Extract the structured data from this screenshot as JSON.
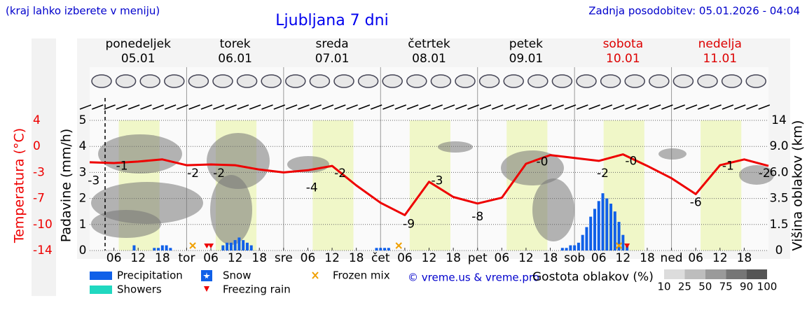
{
  "header": {
    "note": "(kraj lahko izberete v meniju)",
    "update": "Zadnja posodobitev: 05.01.2026 - 04:04"
  },
  "chart_data": {
    "type": "meteogram",
    "title": "Ljubljana 7 dni",
    "days": [
      {
        "name": "ponedeljek",
        "date": "05.01",
        "weekend": false
      },
      {
        "name": "torek",
        "date": "06.01",
        "weekend": false
      },
      {
        "name": "sreda",
        "date": "07.01",
        "weekend": false
      },
      {
        "name": "četrtek",
        "date": "08.01",
        "weekend": false
      },
      {
        "name": "petek",
        "date": "09.01",
        "weekend": false
      },
      {
        "name": "sobota",
        "date": "10.01",
        "weekend": true
      },
      {
        "name": "nedelja",
        "date": "11.01",
        "weekend": true
      }
    ],
    "xlim": [
      0,
      168
    ],
    "xticks": [
      {
        "value": 6,
        "label": "06"
      },
      {
        "value": 12,
        "label": "12"
      },
      {
        "value": 18,
        "label": "18"
      },
      {
        "value": 24,
        "label": "tor"
      },
      {
        "value": 30,
        "label": "06"
      },
      {
        "value": 36,
        "label": "12"
      },
      {
        "value": 42,
        "label": "18"
      },
      {
        "value": 48,
        "label": "sre"
      },
      {
        "value": 54,
        "label": "06"
      },
      {
        "value": 60,
        "label": "12"
      },
      {
        "value": 66,
        "label": "18"
      },
      {
        "value": 72,
        "label": "čet"
      },
      {
        "value": 78,
        "label": "06"
      },
      {
        "value": 84,
        "label": "12"
      },
      {
        "value": 90,
        "label": "18"
      },
      {
        "value": 96,
        "label": "pet"
      },
      {
        "value": 102,
        "label": "06"
      },
      {
        "value": 108,
        "label": "12"
      },
      {
        "value": 114,
        "label": "18"
      },
      {
        "value": 120,
        "label": "sob"
      },
      {
        "value": 126,
        "label": "06"
      },
      {
        "value": 132,
        "label": "12"
      },
      {
        "value": 138,
        "label": "18"
      },
      {
        "value": 144,
        "label": "ned"
      },
      {
        "value": 150,
        "label": "06"
      },
      {
        "value": 156,
        "label": "12"
      },
      {
        "value": 162,
        "label": "18"
      }
    ],
    "ylabel": "Padavine (mm/h)",
    "ylim": [
      0,
      5
    ],
    "yticks": [
      0,
      1,
      2,
      3,
      4,
      5
    ],
    "templabel": "Temperatura (°C)",
    "templim": [
      -14,
      4
    ],
    "tempticks": [
      4,
      {
        "value": 0.4,
        "label": "0"
      },
      {
        "value": -3.2,
        "label": "-3"
      },
      {
        "value": -6.8,
        "label": "-7"
      },
      {
        "value": -10.4,
        "label": "-10"
      },
      -14
    ],
    "y2label": "Višina oblakov (km)",
    "y2ticks": [
      0,
      1.5,
      3.5,
      {
        "value": 6,
        "label": "6.0"
      },
      {
        "value": 9,
        "label": "9.0"
      },
      14
    ],
    "series": [
      {
        "color": "#ee0000",
        "x": [
          0,
          6,
          12,
          18,
          24,
          30,
          36,
          42,
          48,
          54,
          60,
          66,
          72,
          78,
          84,
          90,
          96,
          102,
          108,
          114,
          120,
          126,
          132,
          138,
          144,
          150,
          156,
          162,
          168
        ],
        "values": [
          -1.8,
          -1.9,
          -1.7,
          -1.4,
          -2.2,
          -2.1,
          -2.2,
          -2.8,
          -3.2,
          -2.9,
          -2.3,
          -5.0,
          -7.4,
          -9.1,
          -4.5,
          -6.6,
          -7.5,
          -6.7,
          -2.0,
          -0.8,
          -1.2,
          -1.6,
          -0.7,
          -2.3,
          -4.0,
          -6.2,
          -2.2,
          -1.4,
          -2.3
        ]
      }
    ],
    "temp_labels": {
      "x": [
        1,
        8,
        25.6,
        32,
        55,
        62,
        79,
        86,
        96,
        112,
        127,
        134,
        150,
        158,
        167
      ],
      "values": [
        -3,
        -1,
        -2,
        -2,
        -4,
        -2,
        -9,
        -3,
        -8,
        -0.4,
        -2,
        -0.3,
        -6,
        -1,
        -2
      ],
      "value_labels": [
        "-3",
        "-1",
        "-2",
        "-2",
        "-4",
        "-2",
        "-9",
        "-3",
        "-8",
        "-0",
        "-2",
        "-0",
        "-6",
        "-1",
        "-2"
      ]
    },
    "precip": {
      "color": "#1060e8",
      "x": [
        11,
        16,
        17,
        18,
        19,
        20,
        33,
        34,
        35,
        36,
        37,
        38,
        39,
        40,
        71,
        72,
        73,
        74,
        117,
        118,
        119,
        120,
        121,
        122,
        123,
        124,
        125,
        126,
        127,
        128,
        129,
        130,
        131,
        132,
        133
      ],
      "values": [
        0.2,
        0.1,
        0.1,
        0.2,
        0.2,
        0.1,
        0.2,
        0.3,
        0.3,
        0.4,
        0.5,
        0.4,
        0.3,
        0.2,
        0.1,
        0.1,
        0.1,
        0.1,
        0.1,
        0.1,
        0.2,
        0.2,
        0.3,
        0.6,
        0.9,
        1.3,
        1.6,
        1.9,
        2.2,
        2.0,
        1.8,
        1.5,
        1.1,
        0.6,
        0.2
      ]
    },
    "freezing_rain_x": [
      29,
      30,
      133
    ],
    "frozen_mix_x": [
      25.5,
      76.5,
      131
    ],
    "legend": [
      {
        "name": "Precipitation",
        "color": "#1060e8"
      },
      {
        "name": "Showers",
        "color": "#20d8c0"
      },
      {
        "name": "Snow",
        "color": "#1060e8"
      },
      {
        "name": "Freezing rain",
        "color": "#ee0000"
      },
      {
        "name": "Frozen mix",
        "color": "#f0a000"
      }
    ],
    "credit": "© vreme.us & vreme.pro",
    "cloud_legend": {
      "title": "Gostota oblakov (%)",
      "levels": [
        10,
        25,
        50,
        75,
        90,
        100
      ],
      "colors": [
        "#dcdcdc",
        "#bdbdbd",
        "#9a9a9a",
        "#767676",
        "#555555"
      ]
    }
  }
}
